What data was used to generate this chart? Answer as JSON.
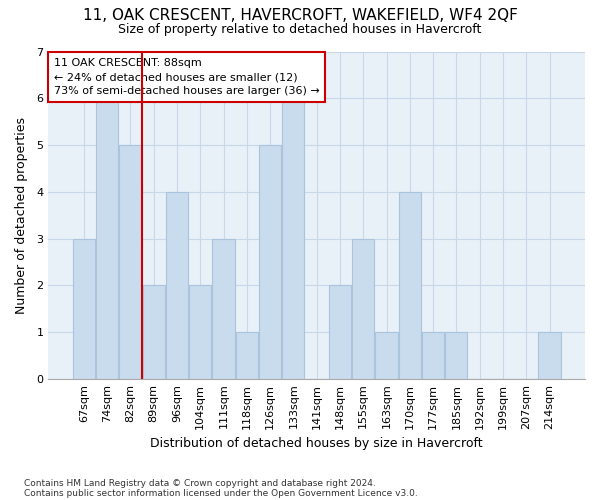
{
  "title": "11, OAK CRESCENT, HAVERCROFT, WAKEFIELD, WF4 2QF",
  "subtitle": "Size of property relative to detached houses in Havercroft",
  "xlabel": "Distribution of detached houses by size in Havercroft",
  "ylabel": "Number of detached properties",
  "categories": [
    "67sqm",
    "74sqm",
    "82sqm",
    "89sqm",
    "96sqm",
    "104sqm",
    "111sqm",
    "118sqm",
    "126sqm",
    "133sqm",
    "141sqm",
    "148sqm",
    "155sqm",
    "163sqm",
    "170sqm",
    "177sqm",
    "185sqm",
    "192sqm",
    "199sqm",
    "207sqm",
    "214sqm"
  ],
  "values": [
    3,
    6,
    5,
    2,
    4,
    2,
    3,
    1,
    5,
    6,
    0,
    2,
    3,
    1,
    4,
    1,
    1,
    0,
    0,
    0,
    1
  ],
  "bar_color": "#c9dcee",
  "bar_edge_color": "#aac4dc",
  "vline_x_index": 3,
  "vline_color": "#cc0000",
  "annotation_title": "11 OAK CRESCENT: 88sqm",
  "annotation_line1": "← 24% of detached houses are smaller (12)",
  "annotation_line2": "73% of semi-detached houses are larger (36) →",
  "annotation_box_facecolor": "#ffffff",
  "annotation_box_edgecolor": "#cc0000",
  "ylim": [
    0,
    7
  ],
  "yticks": [
    0,
    1,
    2,
    3,
    4,
    5,
    6,
    7
  ],
  "grid_color": "#c8d8e8",
  "plot_bg_color": "#e8f0f8",
  "fig_bg_color": "#ffffff",
  "footnote1": "Contains HM Land Registry data © Crown copyright and database right 2024.",
  "footnote2": "Contains public sector information licensed under the Open Government Licence v3.0.",
  "title_fontsize": 11,
  "subtitle_fontsize": 9,
  "xlabel_fontsize": 9,
  "ylabel_fontsize": 9,
  "tick_fontsize": 8,
  "annot_fontsize": 8,
  "footnote_fontsize": 6.5
}
